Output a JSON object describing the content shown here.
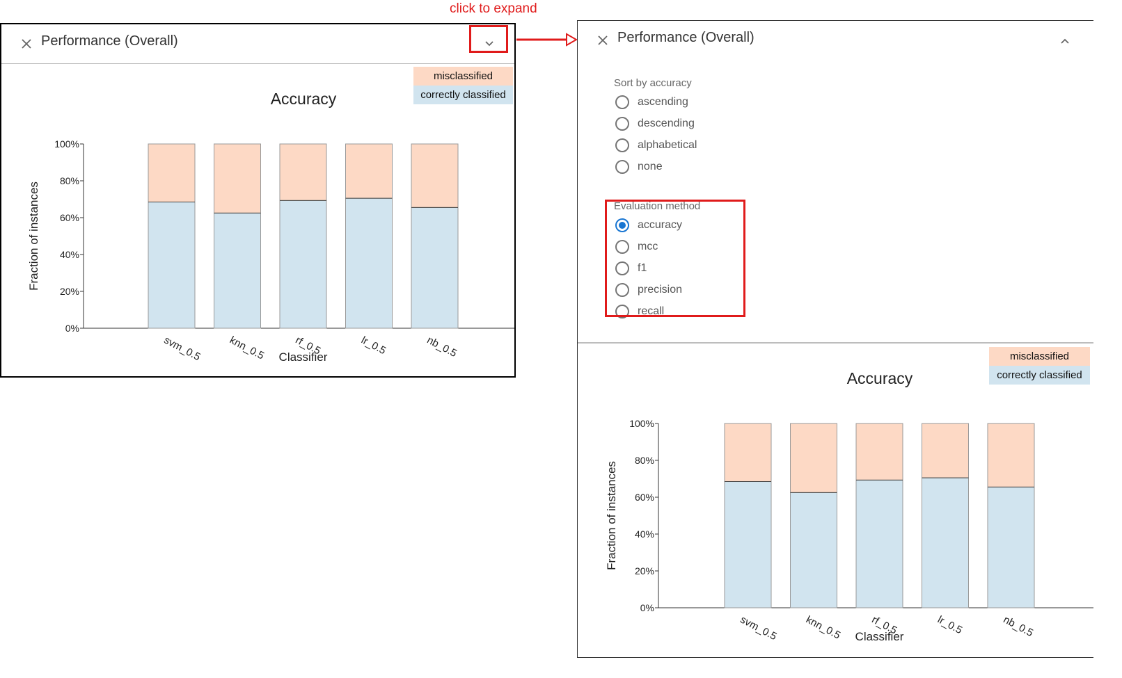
{
  "annotation": {
    "text": "click to expand",
    "color": "#e01b1b"
  },
  "panel": {
    "title": "Performance (Overall)"
  },
  "legend": {
    "misclassified": "misclassified",
    "correctly_classified": "correctly classified"
  },
  "sort_options": {
    "label": "Sort by accuracy",
    "options": [
      "ascending",
      "descending",
      "alphabetical",
      "none"
    ],
    "selected": null
  },
  "evaluation_method": {
    "label": "Evaluation method",
    "options": [
      "accuracy",
      "mcc",
      "f1",
      "precision",
      "recall"
    ],
    "selected": "accuracy"
  },
  "colors": {
    "misclassified": "#fdd9c5",
    "correct": "#d1e4ef",
    "accent": "#1976d2",
    "highlight": "#e01b1b"
  },
  "chart_data": {
    "type": "bar",
    "stacked": true,
    "title": "Accuracy",
    "xlabel": "Classifier",
    "ylabel": "Fraction of instances",
    "categories": [
      "svm_0.5",
      "knn_0.5",
      "rf_0.5",
      "lr_0.5",
      "nb_0.5"
    ],
    "series": [
      {
        "name": "correctly classified",
        "values": [
          0.685,
          0.625,
          0.693,
          0.705,
          0.655
        ]
      },
      {
        "name": "misclassified",
        "values": [
          0.315,
          0.375,
          0.307,
          0.295,
          0.345
        ]
      }
    ],
    "ylim": [
      0,
      1
    ],
    "yticks": [
      "0%",
      "20%",
      "40%",
      "60%",
      "80%",
      "100%"
    ],
    "legend_position": "top-right"
  }
}
